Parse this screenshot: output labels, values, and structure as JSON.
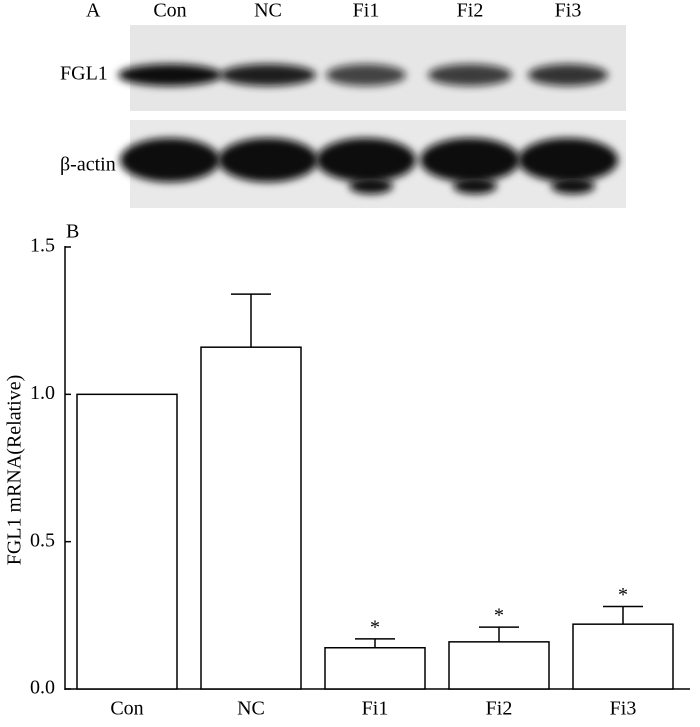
{
  "blot": {
    "label": "A",
    "lanes": [
      "Con",
      "NC",
      "Fi1",
      "Fi2",
      "Fi3"
    ],
    "rows": [
      "FGL1",
      "β-actin"
    ]
  },
  "chart_data": {
    "type": "bar",
    "label": "B",
    "ylabel": "FGL1 mRNA(Relative)",
    "categories": [
      "Con",
      "NC",
      "Fi1",
      "Fi2",
      "Fi3"
    ],
    "values": [
      1.0,
      1.16,
      0.14,
      0.16,
      0.22
    ],
    "errors": [
      null,
      0.18,
      0.03,
      0.05,
      0.06
    ],
    "significance": [
      null,
      null,
      "*",
      "*",
      "*"
    ],
    "color": "#ffffff",
    "ylim": [
      0,
      1.5
    ],
    "yticks": [
      {
        "value": 0,
        "label": "0.0"
      },
      0.5,
      {
        "value": 1,
        "label": "1.0"
      },
      1.5
    ],
    "grid": false
  }
}
